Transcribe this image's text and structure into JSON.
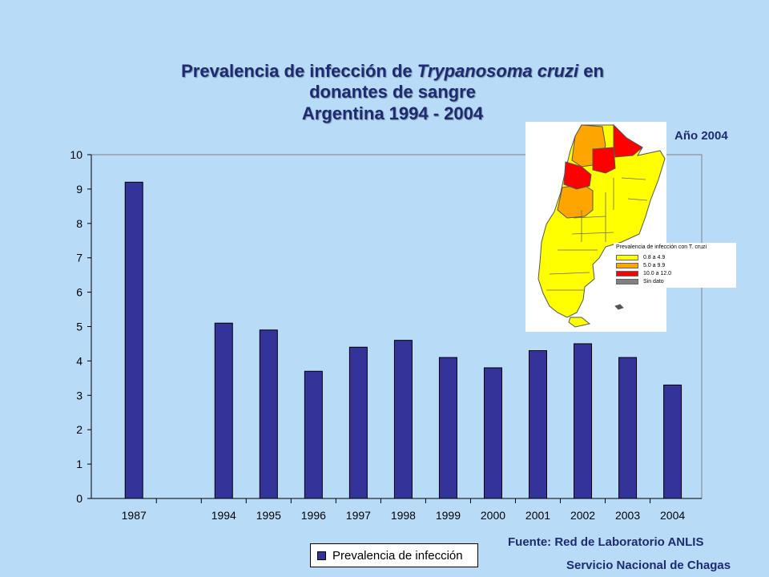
{
  "title": {
    "line1_pre": "Prevalencia de infección de ",
    "line1_italic": "Trypanosoma cruzi",
    "line1_post": " en",
    "line2": "donantes de sangre",
    "line3": "Argentina 1994 - 2004"
  },
  "map": {
    "year_label": "Año 2004",
    "legend_title": "Prevalencia de infección con T. cruzi",
    "legend_items": [
      {
        "label": "0.8   a   4.9",
        "color": "#ffff00"
      },
      {
        "label": "5.0   a   9.9",
        "color": "#ffa500"
      },
      {
        "label": "10.0   a   12.0",
        "color": "#ff0000"
      },
      {
        "label": "Sin dato",
        "color": "#808080"
      }
    ]
  },
  "source": {
    "line1": "Fuente: Red de Laboratorio ANLIS",
    "line2": "Servicio Nacional de Chagas"
  },
  "legend": {
    "label": "Prevalencia de infección",
    "color": "#333399"
  },
  "chart_data": {
    "type": "bar",
    "categories": [
      "1987",
      "",
      "1994",
      "1995",
      "1996",
      "1997",
      "1998",
      "1999",
      "2000",
      "2001",
      "2002",
      "2003",
      "2004"
    ],
    "series": [
      {
        "name": "Prevalencia de infección",
        "values": [
          9.2,
          null,
          5.1,
          4.9,
          3.7,
          4.4,
          4.6,
          4.1,
          3.8,
          4.3,
          4.5,
          4.1,
          3.3
        ]
      }
    ],
    "ylim": [
      0,
      10
    ],
    "yticks": [
      0,
      1,
      2,
      3,
      4,
      5,
      6,
      7,
      8,
      9,
      10
    ],
    "bar_color": "#333399",
    "plot_background": "#b8dcf8",
    "legend_position": "bottom",
    "grid": false
  }
}
